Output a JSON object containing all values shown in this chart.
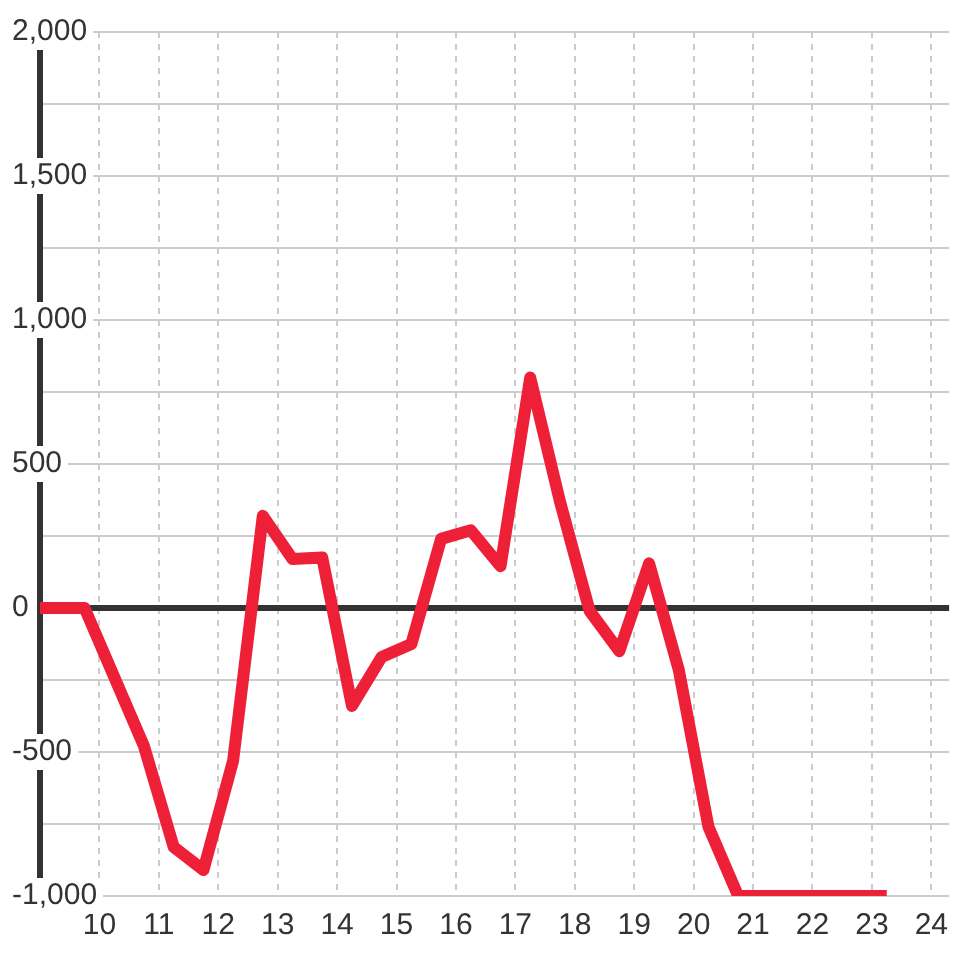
{
  "chart_data": {
    "type": "line",
    "x": [
      9,
      9.75,
      10.25,
      10.75,
      11.25,
      11.75,
      12.25,
      12.75,
      13.25,
      13.75,
      14.25,
      14.75,
      15.25,
      15.75,
      16.25,
      16.75,
      17.25,
      17.75,
      18.25,
      18.75,
      19.25,
      19.75,
      20.25,
      20.75,
      21.25,
      21.75,
      22.25,
      22.75,
      23.25
    ],
    "values": [
      0,
      0,
      -240,
      -480,
      -830,
      -910,
      -530,
      320,
      170,
      175,
      -340,
      -170,
      -125,
      240,
      270,
      145,
      800,
      370,
      -10,
      -150,
      155,
      -215,
      -760,
      -1000,
      -1000,
      -1000,
      -1000,
      -1000,
      -1000
    ],
    "color": "#ee2038",
    "xlim": [
      9,
      24.3
    ],
    "xticks": [
      10,
      11,
      12,
      13,
      14,
      15,
      16,
      17,
      18,
      19,
      20,
      21,
      22,
      23,
      24
    ],
    "ylim": [
      -1000,
      2000
    ],
    "yticks": [
      {
        "value": 2000,
        "label": "2,000"
      },
      {
        "value": 1750,
        "label": null
      },
      {
        "value": 1500,
        "label": "1,500"
      },
      {
        "value": 1250,
        "label": null
      },
      {
        "value": 1000,
        "label": "1,000"
      },
      {
        "value": 750,
        "label": null
      },
      500,
      {
        "value": 250,
        "label": null
      },
      0,
      {
        "value": -250,
        "label": null
      },
      -500,
      {
        "value": -750,
        "label": null
      },
      {
        "value": -1000,
        "label": "-1,000"
      }
    ],
    "grid": true,
    "legend": false,
    "marker": "none",
    "line_style": "solid",
    "ref_lines": [
      {
        "axis": "y",
        "value": 0,
        "color": "#333333"
      }
    ]
  }
}
